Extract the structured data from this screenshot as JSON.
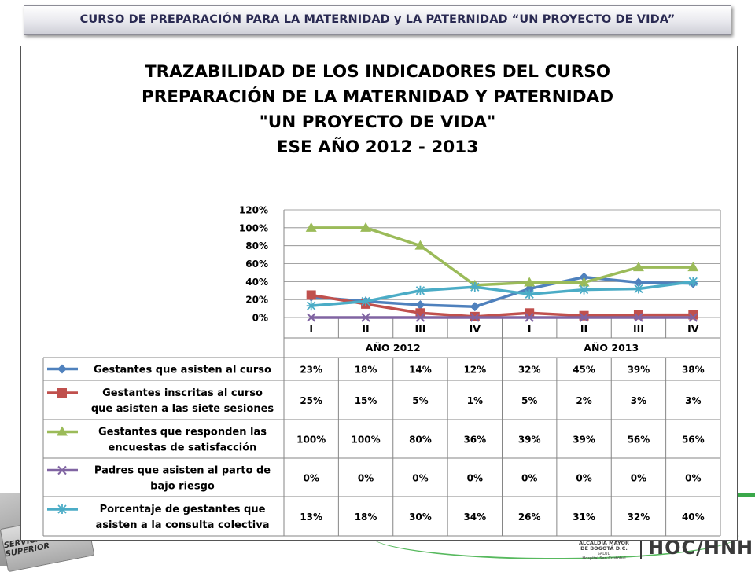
{
  "header": {
    "banner": "CURSO  DE PREPARACIÓN PARA LA MATERNIDAD y LA PATERNIDAD “UN PROYECTO DE VIDA”"
  },
  "logos": {
    "left_badge": "SERVICIO SUPERIOR",
    "alcaldia_line1": "ALCALDÍA MAYOR",
    "alcaldia_line2": "DE BOGOTÁ D.C.",
    "alcaldia_line3": "SALUD",
    "alcaldia_line4": "Hospital San Cristóbal",
    "right_logo": "HOC/HNH"
  },
  "colors": {
    "series1": "#4f81bd",
    "series2": "#c0504d",
    "series3": "#9bbb59",
    "series4": "#8064a2",
    "series5": "#4bacc6",
    "banner_text": "#2a2a52",
    "accent_green": "#3aa84a"
  },
  "chart_data": {
    "type": "line",
    "title_lines": [
      "TRAZABILIDAD DE LOS INDICADORES DEL CURSO",
      "PREPARACIÓN DE LA MATERNIDAD Y PATERNIDAD",
      "\"UN PROYECTO DE VIDA\"",
      "ESE AÑO 2012  -  2013"
    ],
    "categories": [
      "I",
      "II",
      "III",
      "IV",
      "I",
      "II",
      "III",
      "IV"
    ],
    "groups": [
      {
        "label": "AÑO  2012",
        "span": 4
      },
      {
        "label": "AÑO  2013",
        "span": 4
      }
    ],
    "y_ticks": [
      "120%",
      "100%",
      "80%",
      "60%",
      "40%",
      "20%",
      "0%"
    ],
    "ylim": [
      0,
      1.2
    ],
    "grid": true,
    "legend": "table-below",
    "series": [
      {
        "name": "Gestantes que asisten al curso",
        "label_lines": [
          "Gestantes que asisten al curso"
        ],
        "marker": "diamond",
        "values": [
          0.23,
          0.18,
          0.14,
          0.12,
          0.32,
          0.45,
          0.39,
          0.38
        ],
        "labels": [
          "23%",
          "18%",
          "14%",
          "12%",
          "32%",
          "45%",
          "39%",
          "38%"
        ]
      },
      {
        "name": "Gestantes inscritas al curso que asisten a las siete sesiones",
        "label_lines": [
          "Gestantes inscritas al curso",
          "que asisten a las siete sesiones"
        ],
        "marker": "square",
        "values": [
          0.25,
          0.15,
          0.05,
          0.01,
          0.05,
          0.02,
          0.03,
          0.03
        ],
        "labels": [
          "25%",
          "15%",
          "5%",
          "1%",
          "5%",
          "2%",
          "3%",
          "3%"
        ]
      },
      {
        "name": "Gestantes que responden las encuestas de satisfacción",
        "label_lines": [
          "Gestantes que responden las",
          "encuestas de satisfacción"
        ],
        "marker": "triangle",
        "values": [
          1.0,
          1.0,
          0.8,
          0.36,
          0.39,
          0.39,
          0.56,
          0.56
        ],
        "labels": [
          "100%",
          "100%",
          "80%",
          "36%",
          "39%",
          "39%",
          "56%",
          "56%"
        ]
      },
      {
        "name": "Padres que asisten al parto de bajo riesgo",
        "label_lines": [
          "Padres que asisten al parto de",
          "bajo riesgo"
        ],
        "marker": "x",
        "values": [
          0,
          0,
          0,
          0,
          0,
          0,
          0,
          0
        ],
        "labels": [
          "0%",
          "0%",
          "0%",
          "0%",
          "0%",
          "0%",
          "0%",
          "0%"
        ]
      },
      {
        "name": "Porcentaje de gestantes que asisten a la consulta colectiva",
        "label_lines": [
          "Porcentaje de gestantes que",
          "asisten a la consulta colectiva"
        ],
        "marker": "star",
        "values": [
          0.13,
          0.18,
          0.3,
          0.34,
          0.26,
          0.31,
          0.32,
          0.4
        ],
        "labels": [
          "13%",
          "18%",
          "30%",
          "34%",
          "26%",
          "31%",
          "32%",
          "40%"
        ]
      }
    ]
  }
}
